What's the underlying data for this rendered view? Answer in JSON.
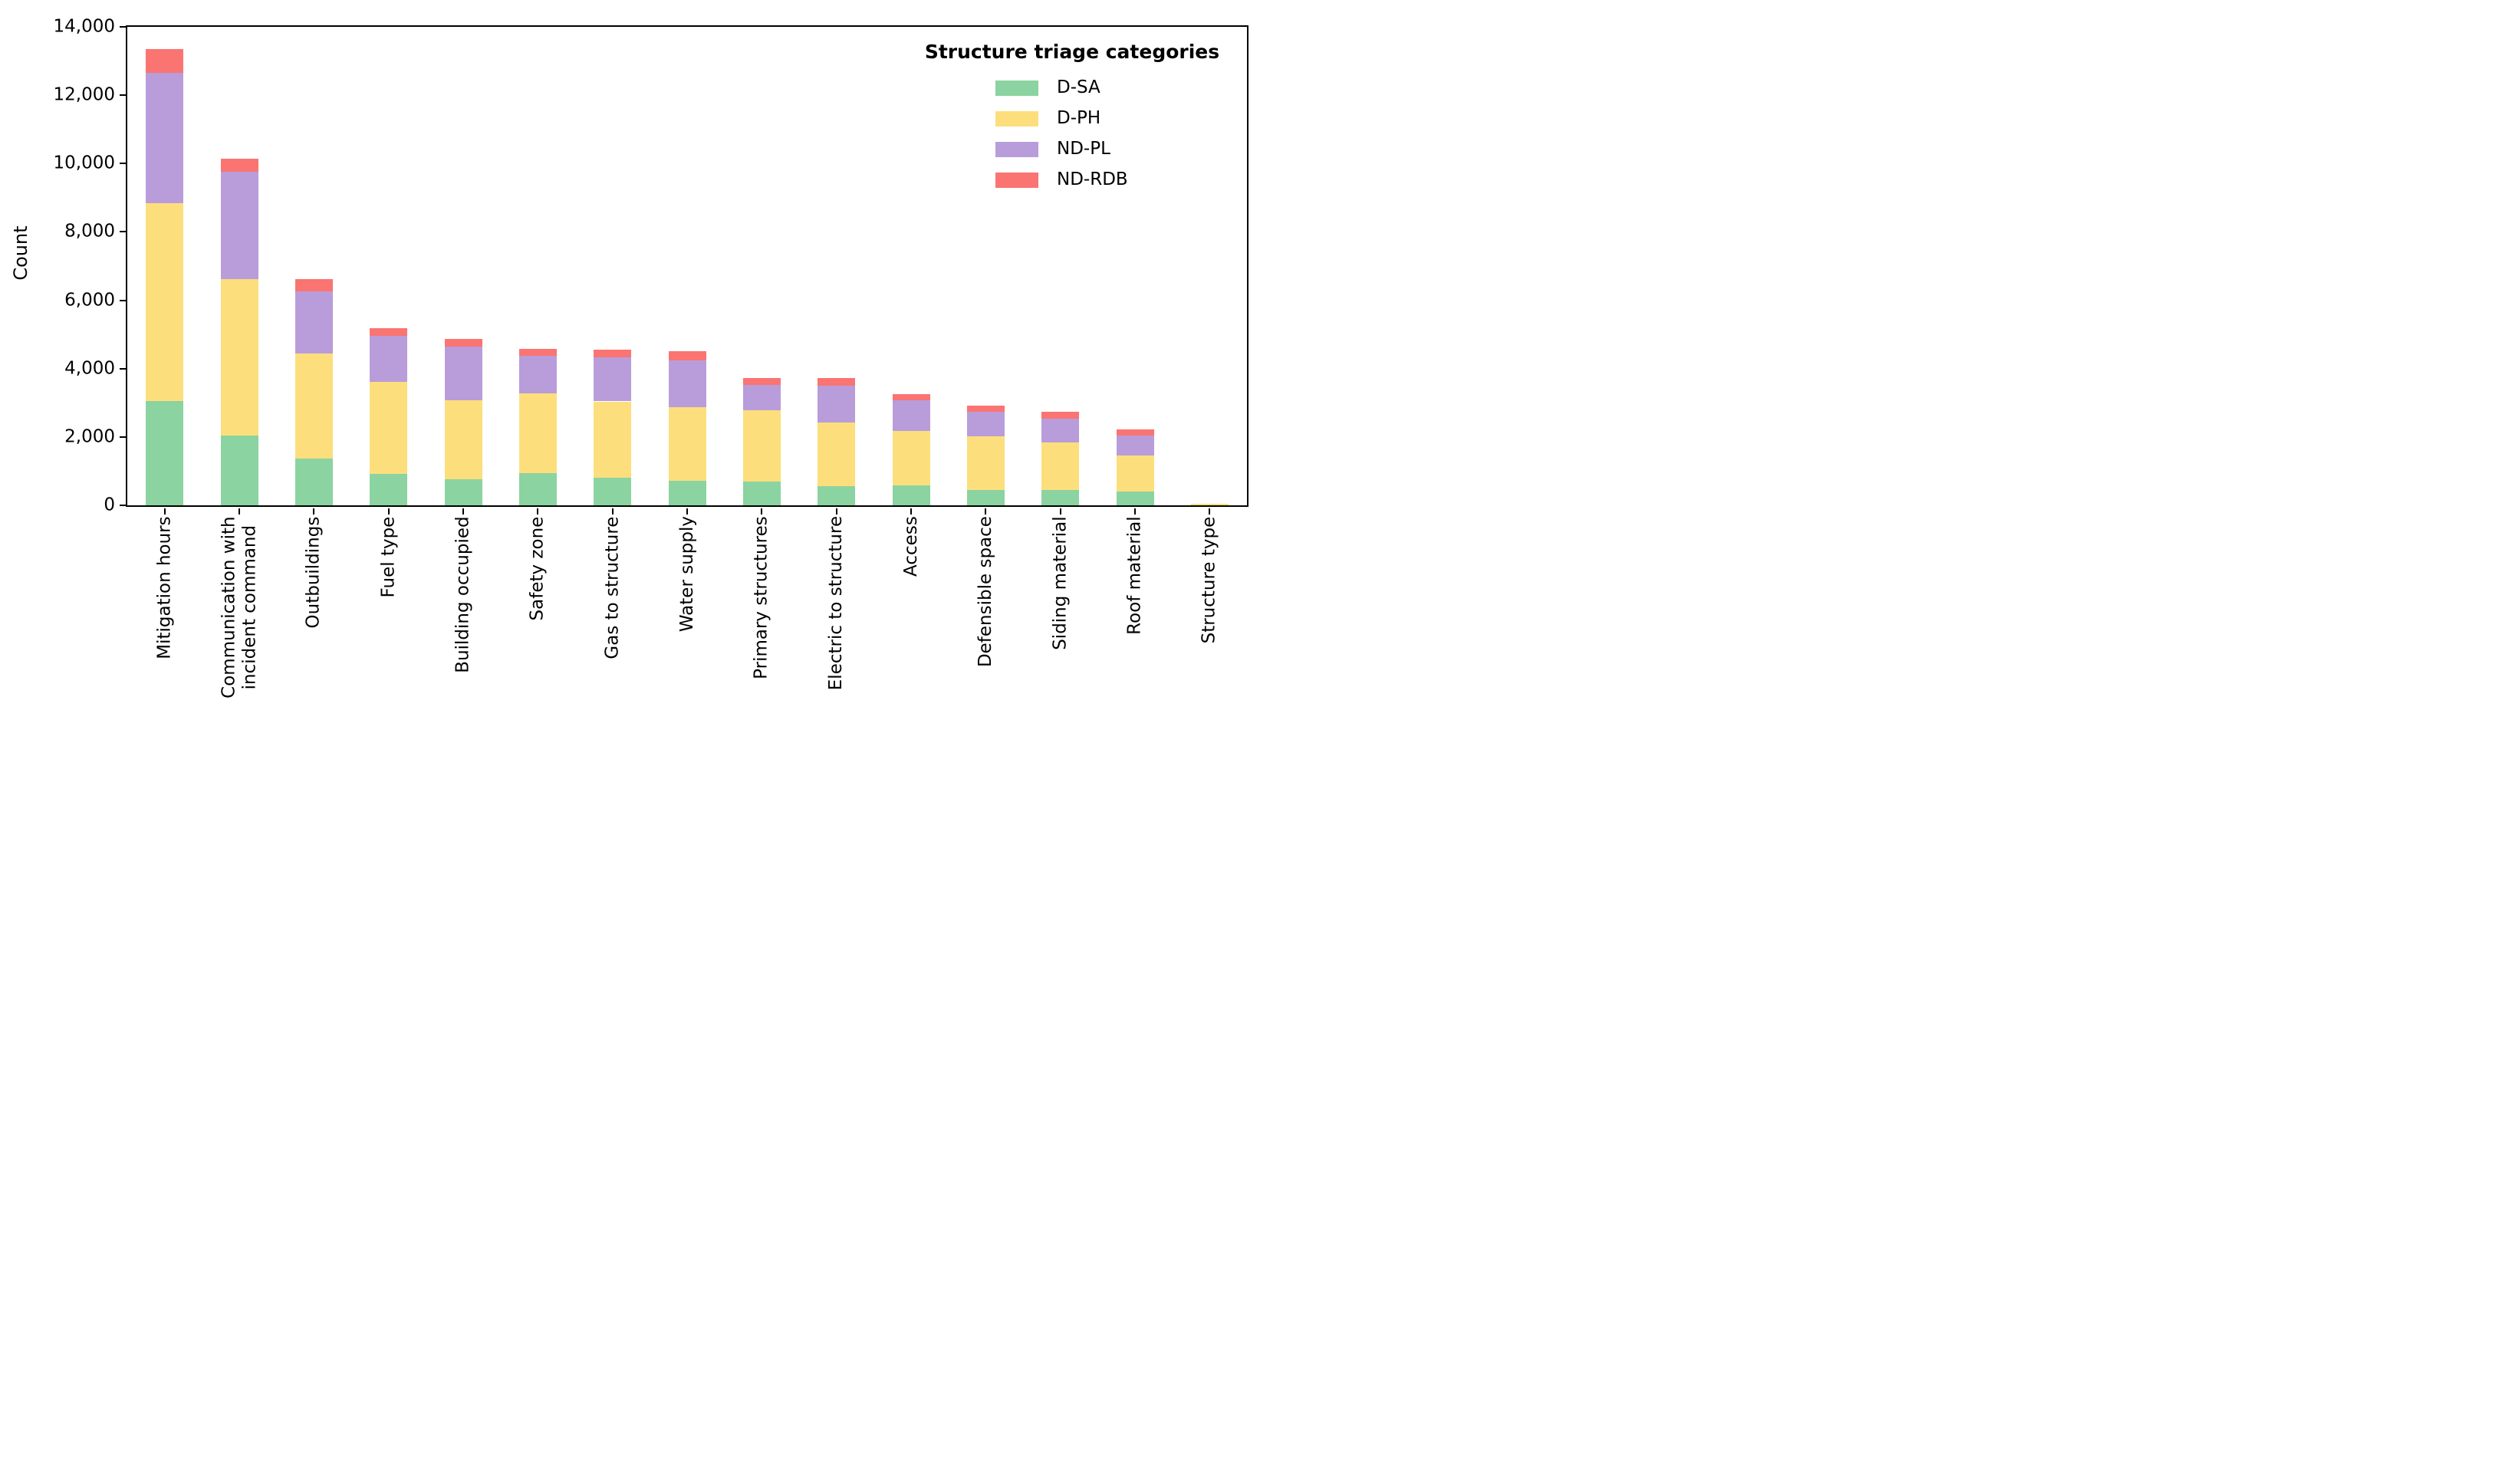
{
  "chart_data": {
    "type": "bar",
    "stacked": true,
    "orientation": "vertical",
    "title": "",
    "xlabel": "",
    "ylabel": "Count",
    "legend_title": "Structure triage categories",
    "legend_position": "upper-right",
    "grid": false,
    "ylim": [
      0,
      14000
    ],
    "yticks": [
      0,
      2000,
      4000,
      6000,
      8000,
      10000,
      12000,
      14000
    ],
    "ytick_labels": [
      "0",
      "2,000",
      "4,000",
      "6,000",
      "8,000",
      "10,000",
      "12,000",
      "14,000"
    ],
    "categories": [
      "Mitigation hours",
      "Communication with\nincident command",
      "Outbuildings",
      "Fuel type",
      "Building occupied",
      "Safety zone",
      "Gas to structure",
      "Water supply",
      "Primary structures",
      "Electric to structure",
      "Access",
      "Defensible space",
      "Siding material",
      "Roof material",
      "Structure type"
    ],
    "series": [
      {
        "name": "D-SA",
        "color": "#8BD3A0",
        "values": [
          3060,
          2050,
          1360,
          930,
          760,
          950,
          810,
          710,
          700,
          550,
          580,
          440,
          450,
          400,
          0
        ]
      },
      {
        "name": "D-PH",
        "color": "#FCDF7C",
        "values": [
          5790,
          4560,
          3090,
          2680,
          2320,
          2320,
          2230,
          2170,
          2080,
          1880,
          1600,
          1570,
          1380,
          1050,
          50
        ]
      },
      {
        "name": "ND-PL",
        "color": "#B89DDA",
        "values": [
          3810,
          3140,
          1820,
          1350,
          1570,
          1110,
          1280,
          1370,
          740,
          1070,
          900,
          730,
          700,
          590,
          0
        ]
      },
      {
        "name": "ND-RDB",
        "color": "#FA7472",
        "values": [
          690,
          400,
          350,
          230,
          210,
          200,
          240,
          270,
          200,
          230,
          170,
          170,
          210,
          180,
          0
        ]
      }
    ],
    "totals": [
      13350,
      10150,
      6620,
      5190,
      4860,
      4580,
      4560,
      4520,
      3720,
      3730,
      3250,
      2910,
      2740,
      2220,
      50
    ],
    "axis_color": "#000000"
  }
}
